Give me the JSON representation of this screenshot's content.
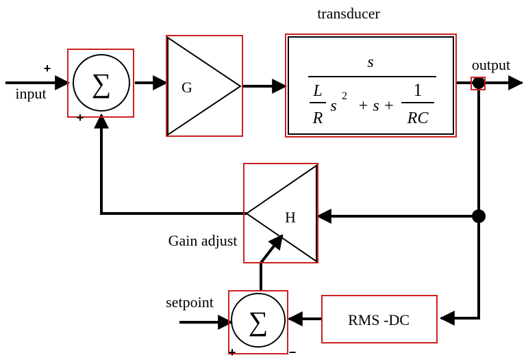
{
  "labels": {
    "input": "input",
    "output": "output",
    "transducer": "transducer",
    "gain_g": "G",
    "gain_h": "H",
    "gain_adjust": "Gain adjust",
    "setpoint": "setpoint",
    "rms_dc": "RMS -DC",
    "sigma": "∑",
    "plus": "+",
    "minus": "−"
  },
  "transfer_function": {
    "numerator": "s",
    "l": "L",
    "r": "R",
    "s": "s",
    "exp": "2",
    "plus_s": "+ s +",
    "one": "1",
    "rc": "RC"
  },
  "colors": {
    "box_outline": "#cc1f1f",
    "wire": "#000000"
  }
}
